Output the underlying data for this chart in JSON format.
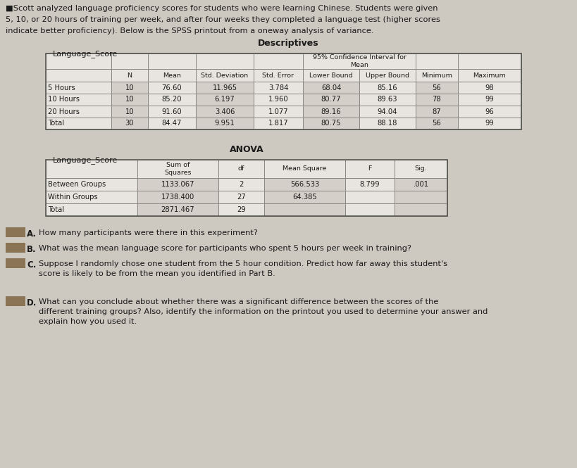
{
  "intro_text_lines": [
    "■Scott analyzed language proficiency scores for students who were learning Chinese. Students were given",
    "5, 10, or 20 hours of training per week, and after four weeks they completed a language test (higher scores",
    "indicate better proficiency). Below is the SPSS printout from a oneway analysis of variance."
  ],
  "descriptives_title": "Descriptives",
  "desc_subtitle": "Language_Score",
  "desc_col_labels_row1": [
    "",
    "",
    "",
    "",
    "",
    "95% Confidence Interval for\nMean",
    "",
    "",
    ""
  ],
  "desc_col_labels_row2": [
    "",
    "N",
    "Mean",
    "Std. Deviation",
    "Std. Error",
    "Lower Bound",
    "Upper Bound",
    "Minimum",
    "Maximum"
  ],
  "desc_rows": [
    [
      "5 Hours",
      "10",
      "76.60",
      "11.965",
      "3.784",
      "68.04",
      "85.16",
      "56",
      "98"
    ],
    [
      "10 Hours",
      "10",
      "85.20",
      "6.197",
      "1.960",
      "80.77",
      "89.63",
      "78",
      "99"
    ],
    [
      "20 Hours",
      "10",
      "91.60",
      "3.406",
      "1.077",
      "89.16",
      "94.04",
      "87",
      "96"
    ],
    [
      "Total",
      "30",
      "84.47",
      "9.951",
      "1.817",
      "80.75",
      "88.18",
      "56",
      "99"
    ]
  ],
  "anova_title": "ANOVA",
  "anova_subtitle": "Language_Score",
  "anova_col_labels": [
    "",
    "Sum of\nSquares",
    "df",
    "Mean Square",
    "F",
    "Sig."
  ],
  "anova_rows": [
    [
      "Between Groups",
      "1133.067",
      "2",
      "566.533",
      "8.799",
      ".001"
    ],
    [
      "Within Groups",
      "1738.400",
      "27",
      "64.385",
      "",
      ""
    ],
    [
      "Total",
      "2871.467",
      "29",
      "",
      "",
      ""
    ]
  ],
  "q_labels": [
    "A.",
    "B.",
    "C.",
    "D."
  ],
  "q_texts": [
    "How many participants were there in this experiment?",
    "What was the mean language score for participants who spent 5 hours per week in training?",
    "Suppose I randomly chose one student from the 5 hour condition. Predict how far away this student's\nscore is likely to be from the mean you identified in Part B.",
    "What can you conclude about whether there was a significant difference between the scores of the\ndifferent training groups? Also, identify the information on the printout you used to determine your answer and\nexplain how you used it."
  ],
  "bg_color": "#cdc8c0",
  "table_white": "#e8e5e0",
  "table_hatch": "#d4cfc8",
  "border_color": "#888880",
  "text_color": "#1a1a1a",
  "box_color": "#8b7355"
}
